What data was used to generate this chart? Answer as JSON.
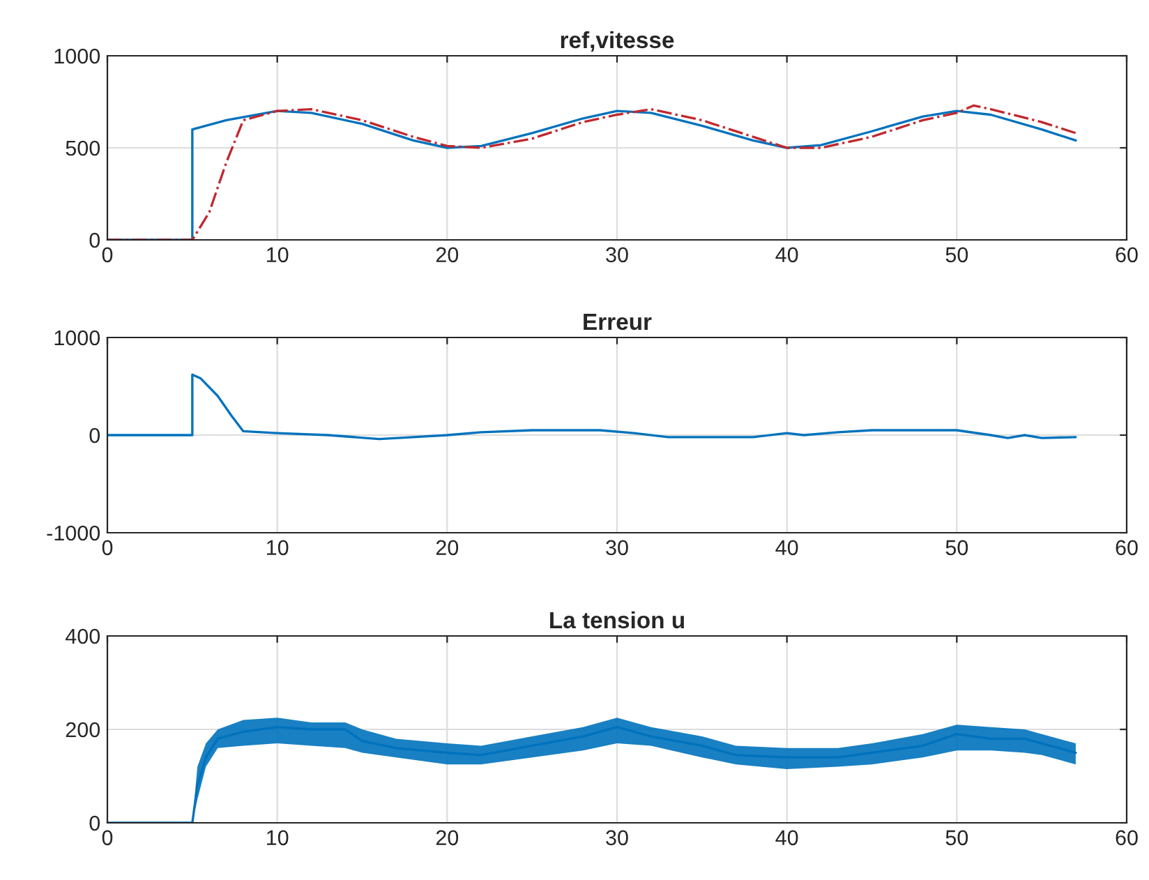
{
  "chart_data": [
    {
      "type": "line",
      "title": "ref,vitesse",
      "xlim": [
        0,
        60
      ],
      "xticks": [
        0,
        10,
        20,
        30,
        40,
        50,
        60
      ],
      "ylim": [
        0,
        1000
      ],
      "yticks": [
        0,
        500,
        1000
      ],
      "grid": true,
      "series": [
        {
          "color": "#0072bd",
          "line_style": "solid",
          "x": [
            0,
            5,
            5,
            7,
            10,
            12,
            15,
            18,
            20,
            22,
            25,
            28,
            30,
            32,
            35,
            38,
            40,
            42,
            45,
            48,
            50,
            52,
            55,
            57
          ],
          "values": [
            0,
            0,
            600,
            650,
            700,
            690,
            630,
            540,
            500,
            510,
            580,
            660,
            700,
            690,
            620,
            540,
            500,
            515,
            590,
            670,
            700,
            680,
            600,
            540
          ]
        },
        {
          "color": "#c0282e",
          "line_style": "dashdot",
          "x": [
            0,
            5,
            6,
            7,
            8,
            10,
            12,
            15,
            18,
            20,
            22,
            25,
            28,
            30,
            32,
            35,
            38,
            40,
            42,
            45,
            48,
            50,
            51,
            52,
            55,
            57
          ],
          "values": [
            0,
            0,
            150,
            420,
            650,
            700,
            710,
            650,
            560,
            510,
            500,
            550,
            640,
            680,
            710,
            650,
            560,
            500,
            500,
            560,
            650,
            690,
            730,
            710,
            640,
            580
          ]
        }
      ]
    },
    {
      "type": "line",
      "title": "Erreur",
      "xlim": [
        0,
        60
      ],
      "xticks": [
        0,
        10,
        20,
        30,
        40,
        50,
        60
      ],
      "ylim": [
        -1000,
        1000
      ],
      "yticks": [
        -1000,
        0,
        1000
      ],
      "grid": true,
      "series": [
        {
          "color": "#0072bd",
          "x": [
            0,
            5,
            5,
            5.5,
            6.5,
            7.3,
            8,
            10,
            13,
            16,
            18,
            20,
            22,
            25,
            29,
            31,
            33,
            38,
            40,
            41,
            43,
            45,
            50,
            52,
            53,
            54,
            55,
            57
          ],
          "values": [
            0,
            0,
            620,
            580,
            400,
            200,
            40,
            20,
            0,
            -40,
            -20,
            0,
            30,
            50,
            50,
            20,
            -20,
            -20,
            20,
            0,
            30,
            50,
            50,
            0,
            -30,
            0,
            -30,
            -20
          ]
        }
      ]
    },
    {
      "type": "line",
      "title": "La tension u",
      "xlim": [
        0,
        60
      ],
      "xticks": [
        0,
        10,
        20,
        30,
        40,
        50,
        60
      ],
      "ylim": [
        0,
        400
      ],
      "yticks": [
        0,
        200,
        400
      ],
      "grid": true,
      "series": [
        {
          "color": "#0072bd",
          "x": [
            0,
            5,
            5,
            5.3,
            5.8,
            6.5,
            8,
            10,
            12,
            14,
            15,
            17,
            20,
            22,
            25,
            28,
            30,
            32,
            35,
            37,
            40,
            43,
            45,
            48,
            50,
            52,
            54,
            55,
            57
          ],
          "values": [
            0,
            0,
            0,
            80,
            140,
            180,
            195,
            205,
            200,
            200,
            175,
            160,
            150,
            145,
            165,
            185,
            205,
            185,
            165,
            145,
            140,
            140,
            150,
            165,
            190,
            180,
            180,
            170,
            150
          ],
          "lower": [
            0,
            0,
            0,
            50,
            120,
            160,
            165,
            170,
            165,
            160,
            150,
            140,
            125,
            125,
            140,
            155,
            170,
            165,
            140,
            125,
            115,
            120,
            125,
            140,
            155,
            155,
            150,
            145,
            125
          ],
          "upper": [
            0,
            0,
            0,
            120,
            170,
            200,
            220,
            225,
            215,
            215,
            200,
            180,
            170,
            165,
            185,
            205,
            225,
            205,
            185,
            165,
            160,
            160,
            170,
            190,
            210,
            205,
            200,
            190,
            170
          ]
        }
      ]
    }
  ]
}
